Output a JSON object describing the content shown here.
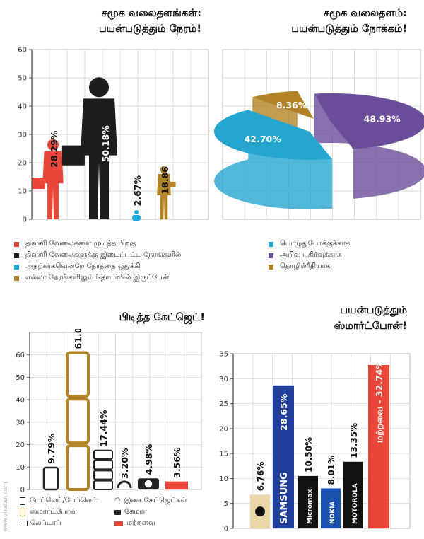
{
  "colors": {
    "red": "#E9473A",
    "black": "#1d1d1d",
    "blue": "#1FA9DC",
    "gold": "#B28427",
    "purple": "#6B4E9A",
    "pie_blue": "#25A6CF",
    "grid": "#cfcfcf"
  },
  "watermark": "www.vikatan.com",
  "chart_data": [
    {
      "type": "bar",
      "title": "சமூக வலைதளங்கள்: பயன்படுத்தும் நேரம்!",
      "title_lines": [
        "சமூக வலைதளங்கள்:",
        "பயன்படுத்தும் நேரம்!"
      ],
      "ylim": [
        0,
        60
      ],
      "yticks": [
        "0",
        "10",
        "20",
        "30",
        "40",
        "50",
        "60"
      ],
      "series": [
        {
          "name": "தினசரி வேலைகளை முடித்த பிறகு",
          "value": 28.29,
          "label": "28.29%",
          "color": "#E9473A",
          "icon": "person-with-bag-icon"
        },
        {
          "name": "தினசரி வேலைகளுக்கு இடைப்பட்ட நேரங்களில்",
          "value": 50.18,
          "label": "50.18%",
          "color": "#1d1d1d",
          "icon": "businessman-with-phone-icon"
        },
        {
          "name": "அதற்காகவென்றே நேரத்தை ஒதுக்கி",
          "value": 2.67,
          "label": "2.67%",
          "color": "#1FA9DC",
          "icon": "seated-person-icon"
        },
        {
          "name": "எல்லா நேரங்களிலும் தொடர்பில் இருப்பேன்",
          "value": 18.86,
          "label": "18.86",
          "color": "#B28427",
          "icon": "person-with-laptop-icon"
        }
      ]
    },
    {
      "type": "pie",
      "title": "சமூக வலைதளம்: பயன்படுத்தும் நோக்கம்!",
      "title_lines": [
        "சமூக வலைதளம்:",
        "பயன்படுத்தும் நோக்கம்!"
      ],
      "slices": [
        {
          "name": "பொழுதுபோக்குக்காக",
          "value": 42.7,
          "label": "42.70%",
          "color": "#25A6CF"
        },
        {
          "name": "அறிவு பகிர்வுக்காக",
          "value": 48.93,
          "label": "48.93%",
          "color": "#6B4E9A"
        },
        {
          "name": "தொழில்ரீதியாக",
          "value": 8.36,
          "label": "8.36%",
          "color": "#B28427"
        }
      ]
    },
    {
      "type": "bar",
      "title": "பிடித்த கேட்ஜெட்!",
      "ylim": [
        0,
        70
      ],
      "yticks": [
        "0",
        "10",
        "20",
        "30",
        "40",
        "50",
        "60"
      ],
      "series": [
        {
          "name": "டேப்லெட்/பேப்லெட்",
          "value": 9.79,
          "label": "9.79%",
          "icon": "tablet-icon"
        },
        {
          "name": "ஸ்மார்ட்போன்",
          "value": 61.03,
          "label": "61.03",
          "icon": "smartphone-icon"
        },
        {
          "name": "லேப்டாப்",
          "value": 17.44,
          "label": "17.44%",
          "icon": "laptop-icon"
        },
        {
          "name": "இசை கேட்ஜெட்கள்",
          "value": 3.2,
          "label": "3.20%",
          "icon": "headphones-icon"
        },
        {
          "name": "கேமரா",
          "value": 4.98,
          "label": "4.98%",
          "icon": "camera-icon"
        },
        {
          "name": "மற்றவை",
          "value": 3.56,
          "label": "3.56%",
          "icon": "red-block-icon"
        }
      ]
    },
    {
      "type": "bar",
      "title": "பயன்படுத்தும் ஸ்மார்ட்போன்!",
      "title_lines": [
        "பயன்படுத்தும்",
        "ஸ்மார்ட்போன்!"
      ],
      "ylim": [
        0,
        35
      ],
      "yticks": [
        "0",
        "5",
        "10",
        "15",
        "20",
        "25",
        "30",
        "35"
      ],
      "series": [
        {
          "name": "Apple",
          "value": 6.76,
          "label": "6.76%",
          "color": "#e9d7a8",
          "brand_text": ""
        },
        {
          "name": "Samsung",
          "value": 28.65,
          "label": "28.65%",
          "color": "#1f3f9b",
          "brand_text": "SAMSUNG"
        },
        {
          "name": "Micromax",
          "value": 10.5,
          "label": "10.50%",
          "color": "#111111",
          "brand_text": "Micromax"
        },
        {
          "name": "Nokia",
          "value": 8.01,
          "label": "8.01%",
          "color": "#1b4fb0",
          "brand_text": "NOKIA"
        },
        {
          "name": "Motorola",
          "value": 13.35,
          "label": "13.35%",
          "color": "#111111",
          "brand_text": "MOTOROLA"
        },
        {
          "name": "மற்றவை",
          "value": 32.74,
          "label": "மற்றவை - 32.74%",
          "color": "#E9473A",
          "brand_text": ""
        }
      ]
    }
  ]
}
